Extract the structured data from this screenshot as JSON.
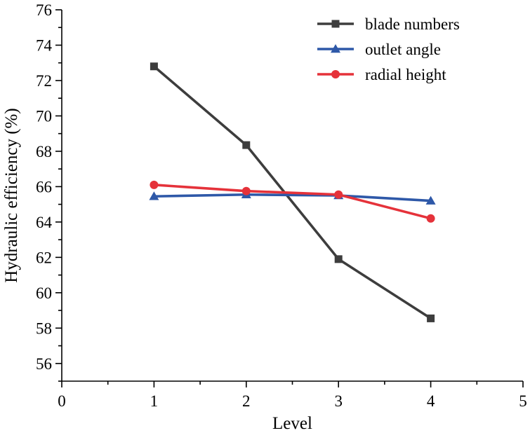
{
  "chart_data": {
    "type": "line",
    "title": "",
    "xlabel": "Level",
    "ylabel": "Hydraulic efficiency (%)",
    "xlim": [
      0,
      5
    ],
    "ylim": [
      55,
      76
    ],
    "x_ticks": [
      0,
      1,
      2,
      3,
      4,
      5
    ],
    "y_ticks": [
      56,
      58,
      60,
      62,
      64,
      66,
      68,
      70,
      72,
      74,
      76
    ],
    "grid": false,
    "legend_position": "top-right",
    "x": [
      1,
      2,
      3,
      4
    ],
    "series": [
      {
        "name": "blade numbers",
        "color": "#3d3d3d",
        "marker": "square",
        "values": [
          72.8,
          68.35,
          61.9,
          58.55
        ]
      },
      {
        "name": "outlet angle",
        "color": "#2e58a8",
        "marker": "triangle",
        "values": [
          65.45,
          65.55,
          65.5,
          65.2
        ]
      },
      {
        "name": "radial height",
        "color": "#e5323a",
        "marker": "circle",
        "values": [
          66.1,
          65.75,
          65.55,
          64.2
        ]
      }
    ]
  }
}
